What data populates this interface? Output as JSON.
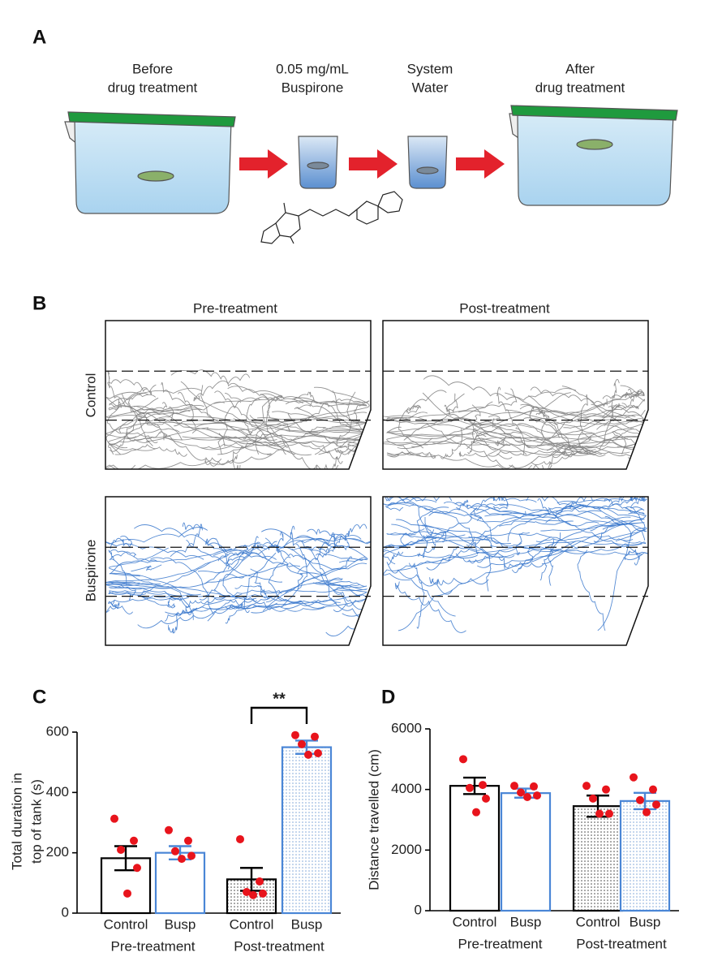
{
  "panel_a": {
    "label": "A",
    "steps": [
      [
        "Before",
        "drug treatment"
      ],
      [
        "0.05 mg/mL",
        "Buspirone"
      ],
      [
        "System",
        "Water"
      ],
      [
        "After",
        "drug treatment"
      ]
    ]
  },
  "panel_b": {
    "label": "B",
    "columns": [
      "Pre-treatment",
      "Post-treatment"
    ],
    "rows": [
      "Control",
      "Buspirone"
    ]
  },
  "chart_data": [
    {
      "type": "bar",
      "label": "C",
      "ylabel": [
        "Total duration in",
        "top of tank (s)"
      ],
      "categories": [
        "Control",
        "Busp",
        "Control",
        "Busp"
      ],
      "groups": [
        "Pre-treatment",
        "Post-treatment"
      ],
      "values": [
        182,
        200,
        112,
        550
      ],
      "errors": [
        40,
        22,
        38,
        22
      ],
      "points": [
        [
          313,
          240,
          210,
          150,
          65
        ],
        [
          275,
          240,
          205,
          190,
          180
        ],
        [
          245,
          105,
          70,
          65,
          60
        ],
        [
          590,
          585,
          560,
          530,
          525
        ]
      ],
      "bar_colors": [
        "#000000",
        "#4a86d6",
        "#000000",
        "#4a86d6"
      ],
      "dotted": [
        false,
        false,
        true,
        true
      ],
      "point_color": "#e8141c",
      "significance": "**",
      "ylim": [
        0,
        600
      ],
      "yticks": [
        0,
        200,
        400,
        600
      ]
    },
    {
      "type": "bar",
      "label": "D",
      "ylabel": [
        "Distance travelled (cm)"
      ],
      "categories": [
        "Control",
        "Busp",
        "Control",
        "Busp"
      ],
      "groups": [
        "Pre-treatment",
        "Post-treatment"
      ],
      "values": [
        4120,
        3880,
        3450,
        3620
      ],
      "errors": [
        270,
        150,
        350,
        270
      ],
      "points": [
        [
          5000,
          4150,
          4050,
          3700,
          3250
        ],
        [
          4120,
          4100,
          3900,
          3800,
          3750
        ],
        [
          4120,
          4000,
          3700,
          3200,
          3200
        ],
        [
          4400,
          4000,
          3650,
          3500,
          3250
        ]
      ],
      "bar_colors": [
        "#000000",
        "#4a86d6",
        "#000000",
        "#4a86d6"
      ],
      "dotted": [
        false,
        false,
        true,
        true
      ],
      "point_color": "#e8141c",
      "ylim": [
        0,
        6000
      ],
      "yticks": [
        0,
        2000,
        4000,
        6000
      ]
    }
  ]
}
